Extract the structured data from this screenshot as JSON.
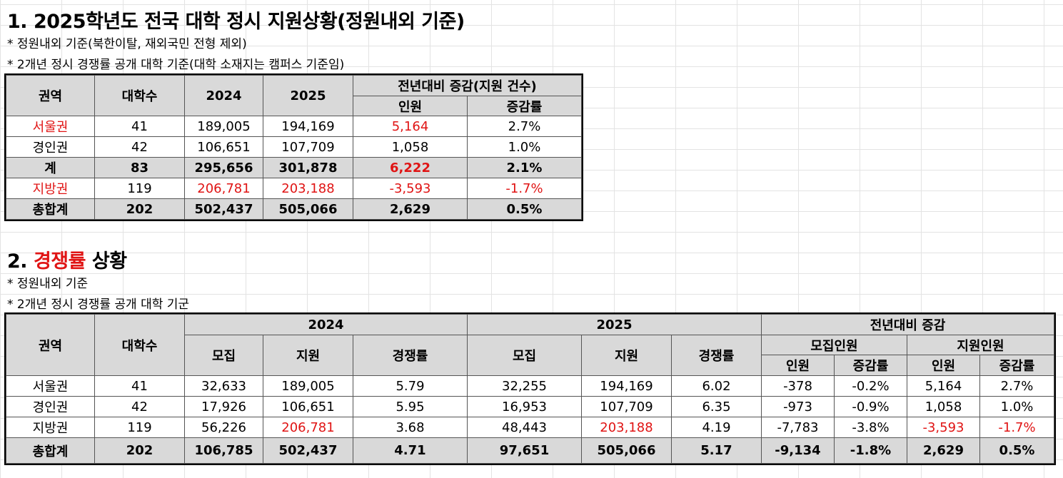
{
  "section1": {
    "title": "1. 2025학년도 전국 대학 정시 지원상황(정원내외 기준)",
    "notes": [
      "* 정원내외 기준(북한이탈, 재외국민 전형 제외)",
      "* 2개년 정시 경쟁률 공개 대학 기준(대학 소재지는 캠퍼스 기준임)"
    ],
    "headers": {
      "region": "권역",
      "univ": "대학수",
      "y2024": "2024",
      "y2025": "2025",
      "change_group": "전년대비 증감(지원 건수)",
      "count": "인원",
      "rate": "증감률"
    },
    "rows": [
      {
        "region": "서울권",
        "univ": "41",
        "y2024": "189,005",
        "y2025": "194,169",
        "count": "5,164",
        "rate": "2.7%"
      },
      {
        "region": "경인권",
        "univ": "42",
        "y2024": "106,651",
        "y2025": "107,709",
        "count": "1,058",
        "rate": "1.0%"
      },
      {
        "region": "계",
        "univ": "83",
        "y2024": "295,656",
        "y2025": "301,878",
        "count": "6,222",
        "rate": "2.1%"
      },
      {
        "region": "지방권",
        "univ": "119",
        "y2024": "206,781",
        "y2025": "203,188",
        "count": "-3,593",
        "rate": "-1.7%"
      },
      {
        "region": "총합계",
        "univ": "202",
        "y2024": "502,437",
        "y2025": "505,066",
        "count": "2,629",
        "rate": "0.5%"
      }
    ]
  },
  "section2": {
    "title_prefix": "2. ",
    "title_highlight": "경쟁률",
    "title_suffix": " 상황",
    "notes": [
      "* 정원내외 기준",
      "* 2개년 정시 경쟁률 공개 대학 기군"
    ],
    "headers": {
      "region": "권역",
      "univ": "대학수",
      "y2024": "2024",
      "y2025": "2025",
      "change": "전년대비 증감",
      "recruit_group": "모집인원",
      "apply_group": "지원인원",
      "recruit": "모집",
      "apply": "지원",
      "ratio": "경쟁률",
      "count": "인원",
      "rate": "증감률"
    },
    "rows": [
      {
        "region": "서울권",
        "univ": "41",
        "r24": "32,633",
        "a24": "189,005",
        "c24": "5.79",
        "r25": "32,255",
        "a25": "194,169",
        "c25": "6.02",
        "rc": "-378",
        "rr": "-0.2%",
        "ac": "5,164",
        "ar": "2.7%"
      },
      {
        "region": "경인권",
        "univ": "42",
        "r24": "17,926",
        "a24": "106,651",
        "c24": "5.95",
        "r25": "16,953",
        "a25": "107,709",
        "c25": "6.35",
        "rc": "-973",
        "rr": "-0.9%",
        "ac": "1,058",
        "ar": "1.0%"
      },
      {
        "region": "지방권",
        "univ": "119",
        "r24": "56,226",
        "a24": "206,781",
        "c24": "3.68",
        "r25": "48,443",
        "a25": "203,188",
        "c25": "4.19",
        "rc": "-7,783",
        "rr": "-3.8%",
        "ac": "-3,593",
        "ar": "-1.7%"
      },
      {
        "region": "총합계",
        "univ": "202",
        "r24": "106,785",
        "a24": "502,437",
        "c24": "4.71",
        "r25": "97,651",
        "a25": "505,066",
        "c25": "5.17",
        "rc": "-9,134",
        "rr": "-1.8%",
        "ac": "2,629",
        "ar": "0.5%"
      }
    ]
  },
  "colors": {
    "highlight": "#e01414",
    "header_fill": "#d9d9d9",
    "grid": "#e3e3e3"
  }
}
